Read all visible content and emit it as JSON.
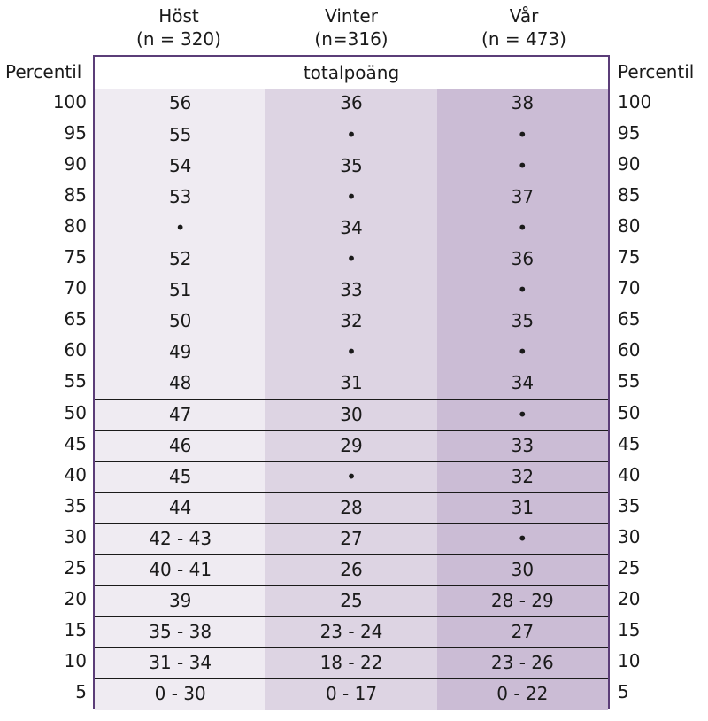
{
  "columns": [
    {
      "name": "Höst",
      "n": "(n = 320)"
    },
    {
      "name": "Vinter",
      "n": "(n=316)"
    },
    {
      "name": "Vår",
      "n": "(n = 473)"
    }
  ],
  "left_label": "Percentil",
  "right_label": "Percentil",
  "table_title": "totalpoäng",
  "rows": [
    {
      "percentile": "100",
      "values": [
        "56",
        "36",
        "38"
      ]
    },
    {
      "percentile": "95",
      "values": [
        "55",
        "•",
        "•"
      ]
    },
    {
      "percentile": "90",
      "values": [
        "54",
        "35",
        "•"
      ]
    },
    {
      "percentile": "85",
      "values": [
        "53",
        "•",
        "37"
      ]
    },
    {
      "percentile": "80",
      "values": [
        "•",
        "34",
        "•"
      ]
    },
    {
      "percentile": "75",
      "values": [
        "52",
        "•",
        "36"
      ]
    },
    {
      "percentile": "70",
      "values": [
        "51",
        "33",
        "•"
      ]
    },
    {
      "percentile": "65",
      "values": [
        "50",
        "32",
        "35"
      ]
    },
    {
      "percentile": "60",
      "values": [
        "49",
        "•",
        "•"
      ]
    },
    {
      "percentile": "55",
      "values": [
        "48",
        "31",
        "34"
      ]
    },
    {
      "percentile": "50",
      "values": [
        "47",
        "30",
        "•"
      ]
    },
    {
      "percentile": "45",
      "values": [
        "46",
        "29",
        "33"
      ]
    },
    {
      "percentile": "40",
      "values": [
        "45",
        "•",
        "32"
      ]
    },
    {
      "percentile": "35",
      "values": [
        "44",
        "28",
        "31"
      ]
    },
    {
      "percentile": "30",
      "values": [
        "42 - 43",
        "27",
        "•"
      ]
    },
    {
      "percentile": "25",
      "values": [
        "40 - 41",
        "26",
        "30"
      ]
    },
    {
      "percentile": "20",
      "values": [
        "39",
        "25",
        "28 - 29"
      ]
    },
    {
      "percentile": "15",
      "values": [
        "35 - 38",
        "23 - 24",
        "27"
      ]
    },
    {
      "percentile": "10",
      "values": [
        "31 - 34",
        "18 - 22",
        "23 - 26"
      ]
    },
    {
      "percentile": "5",
      "values": [
        "0 - 30",
        "0 - 17",
        "0 - 22"
      ]
    }
  ],
  "colors": {
    "frame": "#5b3d78",
    "col_hoest": "#efebf2",
    "col_vinter": "#ddd4e3",
    "col_vaar": "#cbbcd5"
  }
}
